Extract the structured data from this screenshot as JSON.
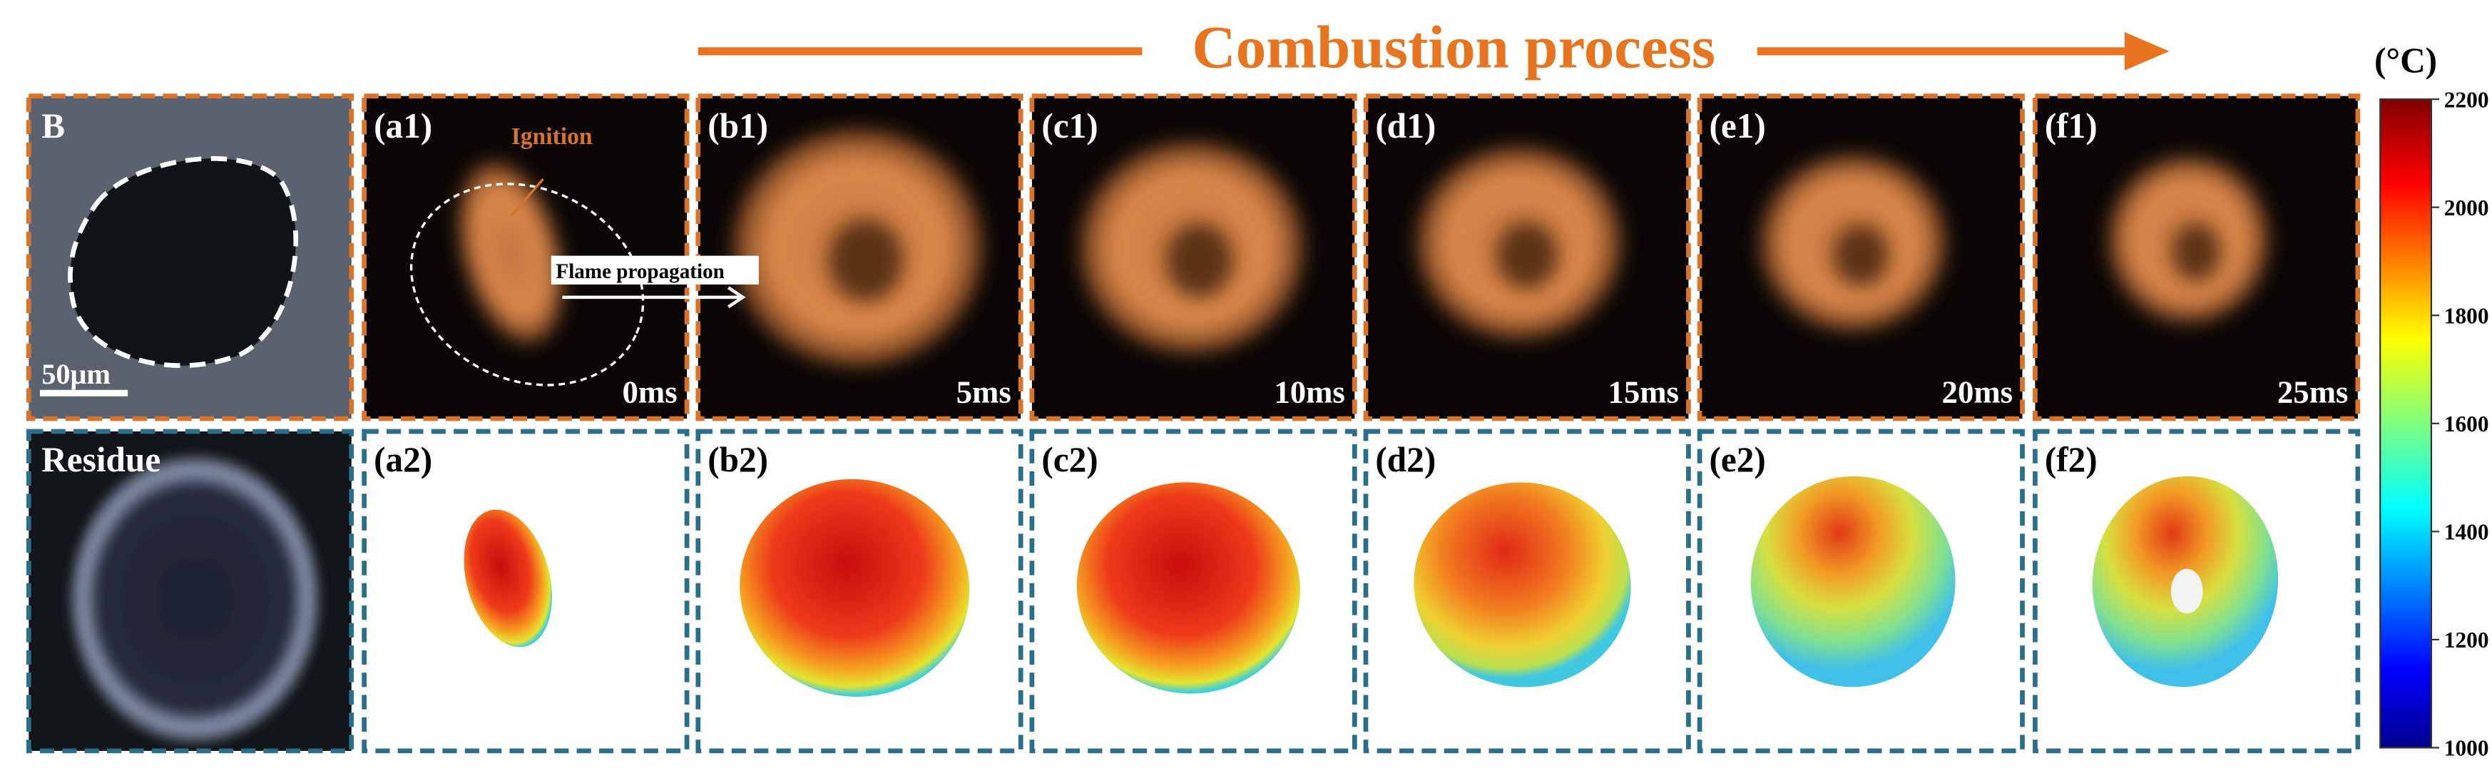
{
  "header": {
    "title": "Combustion process"
  },
  "row_labels": {
    "top": "B",
    "bottom": "Residue"
  },
  "scale_bar": "50μm",
  "annotations": {
    "ignition": "Ignition",
    "flame": "Flame propagation"
  },
  "panels": [
    {
      "top_label": "(a1)",
      "time": "0ms",
      "bottom_label": "(a2)"
    },
    {
      "top_label": "(b1)",
      "time": "5ms",
      "bottom_label": "(b2)"
    },
    {
      "top_label": "(c1)",
      "time": "10ms",
      "bottom_label": "(c2)"
    },
    {
      "top_label": "(d1)",
      "time": "15ms",
      "bottom_label": "(d2)"
    },
    {
      "top_label": "(e1)",
      "time": "20ms",
      "bottom_label": "(e2)"
    },
    {
      "top_label": "(f1)",
      "time": "25ms",
      "bottom_label": "(f2)"
    }
  ],
  "colorbar": {
    "unit": "(°C)",
    "lim": [
      1000,
      2200
    ],
    "ticks": [
      1000,
      1200,
      1400,
      1600,
      1800,
      2000,
      2200
    ]
  }
}
